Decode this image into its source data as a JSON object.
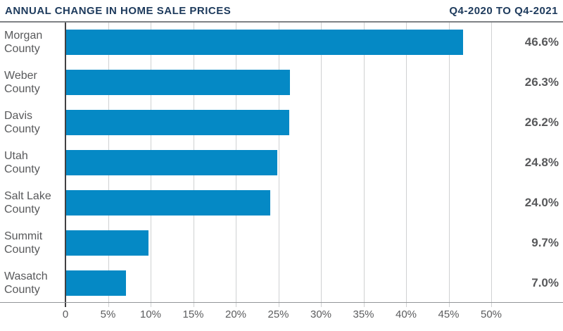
{
  "header": {
    "title": "ANNUAL CHANGE IN HOME SALE PRICES",
    "period": "Q4-2020 TO Q4-2021"
  },
  "chart_data": {
    "type": "bar",
    "orientation": "horizontal",
    "title": "Annual Change in Home Sale Prices",
    "subtitle": "Q4-2020 to Q4-2021",
    "categories": [
      "Morgan County",
      "Weber County",
      "Davis County",
      "Utah County",
      "Salt Lake County",
      "Summit County",
      "Wasatch County"
    ],
    "values": [
      46.6,
      26.3,
      26.2,
      24.8,
      24.0,
      9.7,
      7.0
    ],
    "value_labels": [
      "46.6%",
      "26.3%",
      "26.2%",
      "24.8%",
      "24.0%",
      "9.7%",
      "7.0%"
    ],
    "x_ticks": [
      {
        "value": 0,
        "label": "0"
      },
      {
        "value": 5,
        "label": "5%"
      },
      {
        "value": 10,
        "label": "10%"
      },
      {
        "value": 15,
        "label": "15%"
      },
      {
        "value": 20,
        "label": "20%"
      },
      {
        "value": 25,
        "label": "25%"
      },
      {
        "value": 30,
        "label": "30%"
      },
      {
        "value": 35,
        "label": "35%"
      },
      {
        "value": 40,
        "label": "40%"
      },
      {
        "value": 45,
        "label": "45%"
      },
      {
        "value": 50,
        "label": "50%"
      }
    ],
    "xlim": [
      0,
      58.4
    ],
    "grid": true,
    "legend": false,
    "colors": {
      "bar": "#0589c5",
      "title": "#1d3a5c",
      "text": "#58595b",
      "gridline": "#cfd1d2",
      "zero_axis": "#414042"
    }
  }
}
